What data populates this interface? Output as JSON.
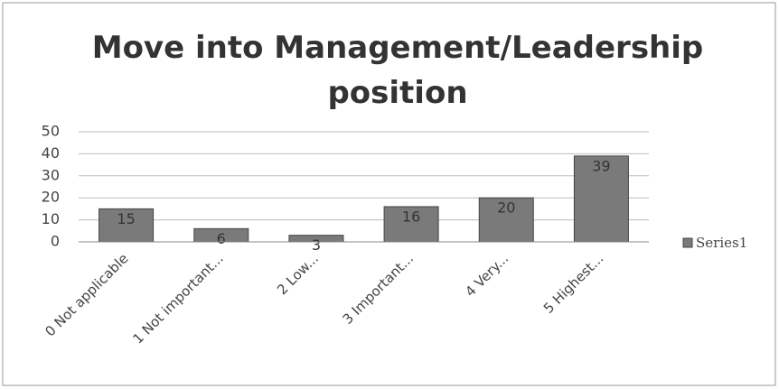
{
  "chart_data": {
    "type": "bar",
    "title": "Move into Management/Leadership position",
    "categories": [
      "0 Not applicable",
      "1 Not important...",
      "2 Low...",
      "3 Important...",
      "4 Very...",
      "5 Highest..."
    ],
    "series": [
      {
        "name": "Series1",
        "color": "#7a7a7a",
        "values": [
          15,
          6,
          3,
          16,
          20,
          39
        ]
      }
    ],
    "ylim": [
      0,
      50
    ],
    "yticks": [
      0,
      10,
      20,
      30,
      40,
      50
    ],
    "grid": true,
    "legend": "right"
  }
}
